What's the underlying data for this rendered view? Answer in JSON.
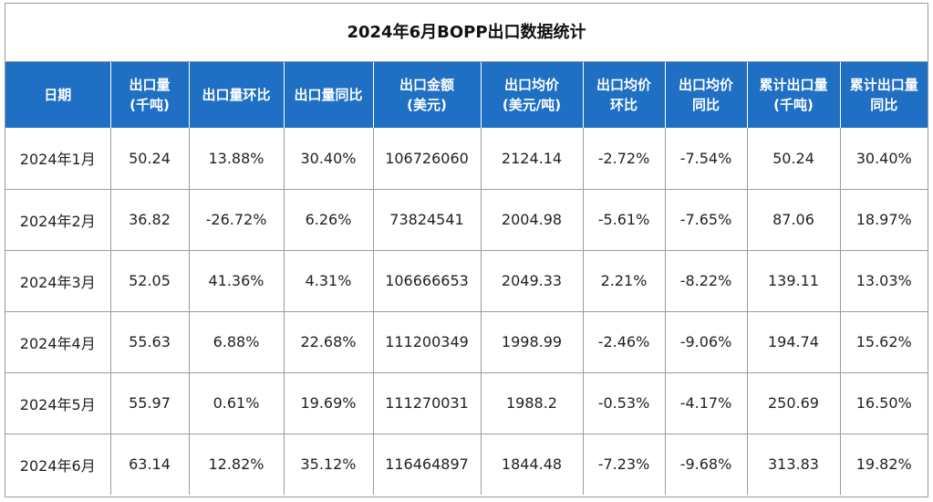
{
  "chart_data": {
    "type": "table",
    "title": "2024年6月BOPP出口数据统计",
    "columns": [
      {
        "line1": "日期",
        "line2": ""
      },
      {
        "line1": "出口量",
        "line2": "(千吨)"
      },
      {
        "line1": "出口量环比",
        "line2": ""
      },
      {
        "line1": "出口量同比",
        "line2": ""
      },
      {
        "line1": "出口金额",
        "line2": "(美元)"
      },
      {
        "line1": "出口均价",
        "line2": "(美元/吨)"
      },
      {
        "line1": "出口均价",
        "line2": "环比"
      },
      {
        "line1": "出口均价",
        "line2": "同比"
      },
      {
        "line1": "累计出口量",
        "line2": "(千吨)"
      },
      {
        "line1": "累计出口量",
        "line2": "同比"
      }
    ],
    "rows": [
      [
        "2024年1月",
        "50.24",
        "13.88%",
        "30.40%",
        "106726060",
        "2124.14",
        "-2.72%",
        "-7.54%",
        "50.24",
        "30.40%"
      ],
      [
        "2024年2月",
        "36.82",
        "-26.72%",
        "6.26%",
        "73824541",
        "2004.98",
        "-5.61%",
        "-7.65%",
        "87.06",
        "18.97%"
      ],
      [
        "2024年3月",
        "52.05",
        "41.36%",
        "4.31%",
        "106666653",
        "2049.33",
        "2.21%",
        "-8.22%",
        "139.11",
        "13.03%"
      ],
      [
        "2024年4月",
        "55.63",
        "6.88%",
        "22.68%",
        "111200349",
        "1998.99",
        "-2.46%",
        "-9.06%",
        "194.74",
        "15.62%"
      ],
      [
        "2024年5月",
        "55.97",
        "0.61%",
        "19.69%",
        "111270031",
        "1988.2",
        "-0.53%",
        "-4.17%",
        "250.69",
        "16.50%"
      ],
      [
        "2024年6月",
        "63.14",
        "12.82%",
        "35.12%",
        "116464897",
        "1844.48",
        "-7.23%",
        "-9.68%",
        "313.83",
        "19.82%"
      ]
    ],
    "header_color": "#1f6fc4",
    "header_text_color": "#ffffff",
    "border_color": "#9a9a9a"
  }
}
